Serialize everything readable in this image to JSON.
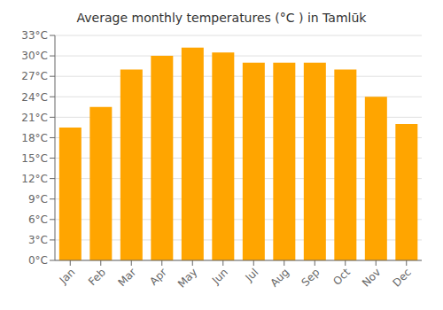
{
  "chart_data": {
    "type": "bar",
    "title": "Average monthly temperatures (°C ) in Tamlūk",
    "categories": [
      "Jan",
      "Feb",
      "Mar",
      "Apr",
      "May",
      "Jun",
      "Jul",
      "Aug",
      "Sep",
      "Oct",
      "Nov",
      "Dec"
    ],
    "values": [
      19.5,
      22.5,
      28.0,
      30.0,
      31.2,
      30.5,
      29.0,
      29.0,
      29.0,
      28.0,
      24.0,
      20.0
    ],
    "color": "#FFA500",
    "ylim": [
      0,
      33
    ],
    "yticks": [
      {
        "value": 0,
        "label": "0°C"
      },
      {
        "value": 3,
        "label": "3°C"
      },
      {
        "value": 6,
        "label": "6°C"
      },
      {
        "value": 9,
        "label": "9°C"
      },
      {
        "value": 12,
        "label": "12°C"
      },
      {
        "value": 15,
        "label": "15°C"
      },
      {
        "value": 18,
        "label": "18°C"
      },
      {
        "value": 21,
        "label": "21°C"
      },
      {
        "value": 24,
        "label": "24°C"
      },
      {
        "value": 27,
        "label": "27°C"
      },
      {
        "value": 30,
        "label": "30°C"
      },
      {
        "value": 33,
        "label": "33°C"
      }
    ],
    "grid": true
  }
}
